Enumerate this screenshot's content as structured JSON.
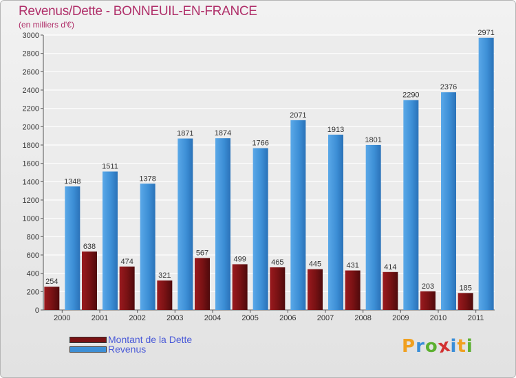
{
  "title": "Revenus/Dette - BONNEUIL-EN-FRANCE",
  "subtitle": "(en milliers d'€)",
  "colors": {
    "dette": "#7a1214",
    "revenus": "#3d8fd6",
    "title": "#b0306a",
    "legend_text": "#4a5ad8"
  },
  "legend": [
    {
      "label": "Montant de la Dette",
      "color": "#7a1214"
    },
    {
      "label": "Revenus",
      "color": "#3d8fd6"
    }
  ],
  "logo": {
    "text": "Proxiti",
    "letters": [
      {
        "ch": "P",
        "color": "#f0a020"
      },
      {
        "ch": "r",
        "color": "#3a8ed8"
      },
      {
        "ch": "o",
        "color": "#5cb030"
      },
      {
        "ch": "x",
        "color": "#d23030"
      },
      {
        "ch": "i",
        "color": "#3a8ed8"
      },
      {
        "ch": "t",
        "color": "#f0a020"
      },
      {
        "ch": "i",
        "color": "#5cb030"
      }
    ]
  },
  "chart_data": {
    "type": "bar",
    "title": "Revenus/Dette - BONNEUIL-EN-FRANCE",
    "ylabel": "(en milliers d'€)",
    "xlabel": "",
    "categories": [
      "2000",
      "2001",
      "2002",
      "2003",
      "2004",
      "2005",
      "2006",
      "2007",
      "2008",
      "2009",
      "2010",
      "2011"
    ],
    "series": [
      {
        "name": "Montant de la Dette",
        "values": [
          254,
          638,
          474,
          321,
          567,
          499,
          465,
          445,
          431,
          414,
          203,
          185
        ]
      },
      {
        "name": "Revenus",
        "values": [
          1348,
          1511,
          1378,
          1871,
          1874,
          1766,
          2071,
          1913,
          1801,
          2290,
          2376,
          2971
        ]
      }
    ],
    "ylim": [
      0,
      3000
    ],
    "yticks": [
      0,
      200,
      400,
      600,
      800,
      1000,
      1200,
      1400,
      1600,
      1800,
      2000,
      2200,
      2400,
      2600,
      2800,
      3000
    ],
    "grid": true,
    "legend_position": "bottom-left"
  }
}
